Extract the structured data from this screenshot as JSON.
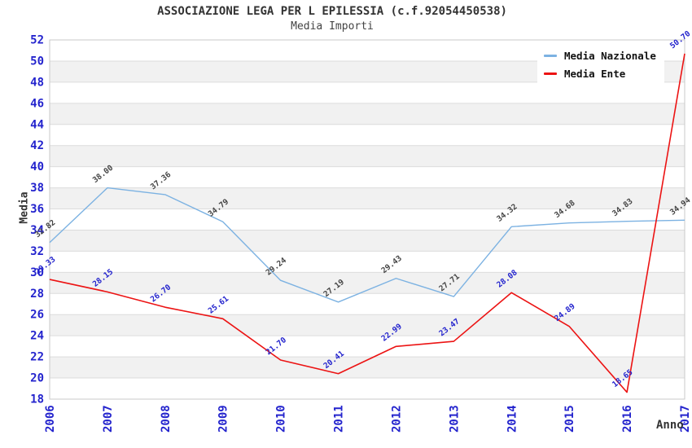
{
  "header": {
    "title": "ASSOCIAZIONE LEGA PER L EPILESSIA (c.f.92054450538)",
    "subtitle": "Media Importi"
  },
  "axes": {
    "y_label": "Media",
    "x_label": "Anno"
  },
  "legend": {
    "items": [
      {
        "label": "Media Nazionale"
      },
      {
        "label": "Media Ente"
      }
    ]
  },
  "chart_data": {
    "type": "line",
    "title": "ASSOCIAZIONE LEGA PER L EPILESSIA (c.f.92054450538)",
    "subtitle": "Media Importi",
    "xlabel": "Anno",
    "ylabel": "Media",
    "categories": [
      "2006",
      "2007",
      "2008",
      "2009",
      "2010",
      "2011",
      "2012",
      "2013",
      "2014",
      "2015",
      "2016",
      "2017"
    ],
    "series": [
      {
        "name": "Media Nazionale",
        "color": "#7cb2e2",
        "label_color": "#444444",
        "values": [
          32.82,
          38.0,
          37.36,
          34.79,
          29.24,
          27.19,
          29.43,
          27.71,
          34.32,
          34.68,
          34.83,
          34.94
        ]
      },
      {
        "name": "Media Ente",
        "color": "#ec1313",
        "label_color": "#2323cd",
        "values": [
          29.33,
          28.15,
          26.7,
          25.61,
          21.7,
          20.41,
          22.99,
          23.47,
          28.08,
          24.89,
          18.65,
          50.7
        ]
      }
    ],
    "ylim": [
      18,
      52
    ],
    "ytick_step": 2,
    "grid": "horizontal-alternating-bands",
    "legend_position": "top-right",
    "tick_color": "#2323cd",
    "band_color": "#f1f1f1",
    "gridline_color": "#dcdcdc",
    "border_color": "#c9c9c9",
    "background_color": "#ffffff"
  }
}
